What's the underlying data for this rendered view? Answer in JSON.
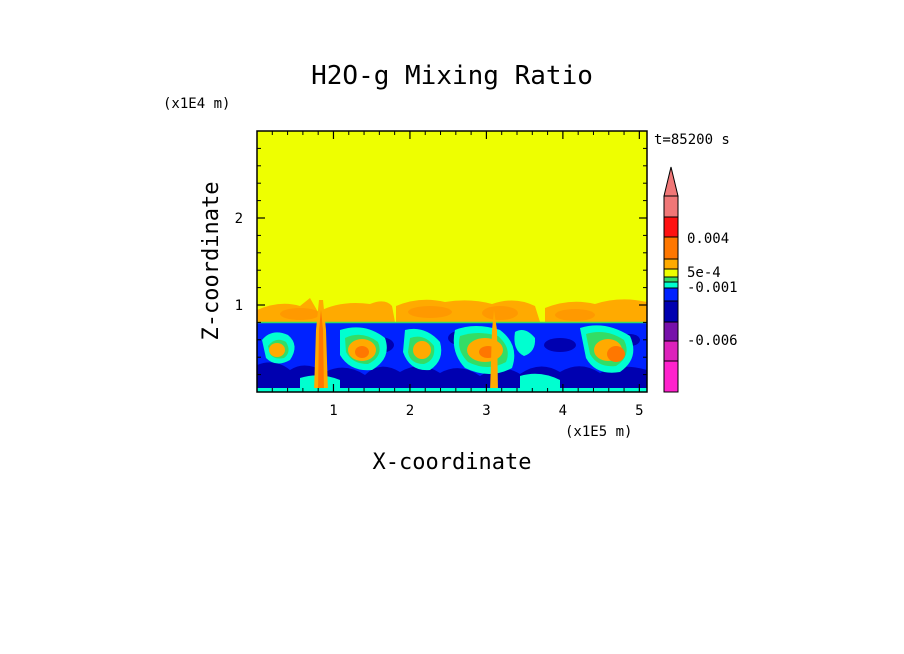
{
  "chart_data": {
    "type": "heatmap",
    "title": "H2O-g Mixing Ratio",
    "xlabel": "X-coordinate",
    "ylabel": "Z-coordinate",
    "x_multiplier": "(x1E5 m)",
    "y_multiplier": "(x1E4 m)",
    "time_label": "t=85200 s",
    "x_ticks": [
      "1",
      "2",
      "3",
      "4",
      "5"
    ],
    "y_ticks": [
      "1",
      "2"
    ],
    "x_tick_values": [
      1,
      2,
      3,
      4,
      5
    ],
    "y_tick_values": [
      1,
      2
    ],
    "xlim": [
      0,
      5.1
    ],
    "ylim": [
      0,
      3
    ],
    "colorbar_labels": [
      "0.004",
      "5e-4",
      "-0.001",
      "-0.006"
    ],
    "colors": {
      "yellow": "#eeff00",
      "blue": "#0022ff",
      "navy": "#0000b0",
      "cyan": "#00ffd0",
      "green": "#33dd66",
      "orange": "#ffaa00",
      "dark_orange": "#ff7700",
      "red": "#ff1111",
      "pink": "#f07777",
      "purple": "#7711aa",
      "magenta": "#dd22bb",
      "hot_pink": "#ff22cc"
    }
  }
}
